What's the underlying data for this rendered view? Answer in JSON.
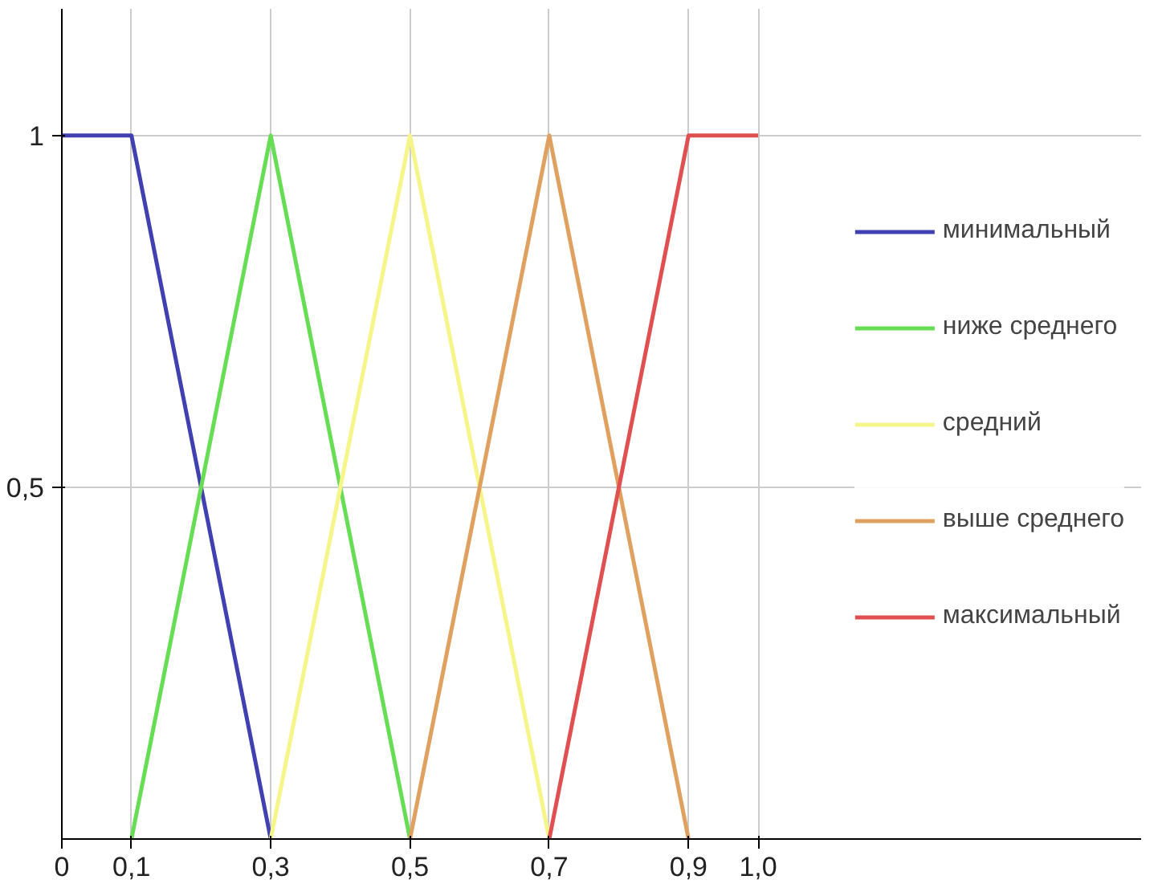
{
  "chart_data": {
    "type": "line",
    "xlim": [
      0,
      1.55
    ],
    "ylim": [
      0,
      1.18
    ],
    "xticks": [
      {
        "value": 0,
        "label": "0"
      },
      {
        "value": 0.1,
        "label": "0,1"
      },
      {
        "value": 0.3,
        "label": "0,3"
      },
      {
        "value": 0.5,
        "label": "0,5"
      },
      {
        "value": 0.7,
        "label": "0,7"
      },
      {
        "value": 0.9,
        "label": "0,9"
      },
      {
        "value": 1.0,
        "label": "1,0"
      }
    ],
    "yticks": [
      {
        "value": 0.5,
        "label": "0,5"
      },
      1
    ],
    "grid": true,
    "legend": "right",
    "marker": "none",
    "line_style": "solid",
    "series": [
      {
        "name": "минимальный",
        "color": "#4040b0",
        "x": [
          0,
          0.1,
          0.3
        ],
        "values": [
          1,
          1,
          0
        ]
      },
      {
        "name": "ниже среднего",
        "color": "#66dd55",
        "x": [
          0.1,
          0.3,
          0.5
        ],
        "values": [
          0,
          1,
          0
        ]
      },
      {
        "name": "средний",
        "color": "#f5f58a",
        "x": [
          0.3,
          0.5,
          0.7
        ],
        "values": [
          0,
          1,
          0
        ]
      },
      {
        "name": "выше среднего",
        "color": "#e0a060",
        "x": [
          0.5,
          0.7,
          0.9
        ],
        "values": [
          0,
          1,
          0
        ]
      },
      {
        "name": "максимальный",
        "color": "#e05050",
        "x": [
          0.7,
          0.9,
          1.0
        ],
        "values": [
          0,
          1,
          1
        ]
      }
    ]
  }
}
